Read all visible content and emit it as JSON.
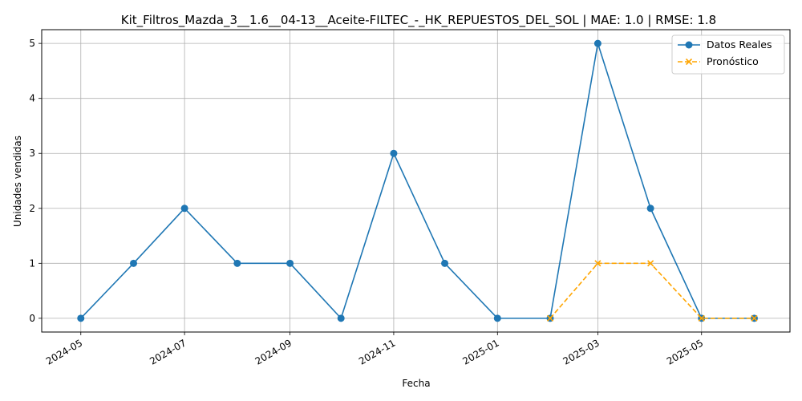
{
  "chart_data": {
    "type": "line",
    "title": "Kit_Filtros_Mazda_3__1.6__04-13__Aceite-FILTEC_-_HK_REPUESTOS_DEL_SOL | MAE: 1.0 | RMSE: 1.8",
    "xlabel": "Fecha",
    "ylabel": "Unidades vendidas",
    "x_type": "date",
    "x_ticks": [
      "2024-05",
      "2024-07",
      "2024-09",
      "2024-11",
      "2025-01",
      "2025-03",
      "2025-05"
    ],
    "y_ticks": [
      0,
      1,
      2,
      3,
      4,
      5
    ],
    "xlim": [
      "2024-04-08",
      "2025-06-22"
    ],
    "ylim": [
      -0.25,
      5.25
    ],
    "grid": true,
    "legend_position": "top-right",
    "series": [
      {
        "name": "Datos Reales",
        "color": "#1f77b4",
        "style": "solid",
        "marker": "circle",
        "points": [
          {
            "x": "2024-05-01",
            "y": 0
          },
          {
            "x": "2024-06-01",
            "y": 1
          },
          {
            "x": "2024-07-01",
            "y": 2
          },
          {
            "x": "2024-08-01",
            "y": 1
          },
          {
            "x": "2024-09-01",
            "y": 1
          },
          {
            "x": "2024-10-01",
            "y": 0
          },
          {
            "x": "2024-11-01",
            "y": 3
          },
          {
            "x": "2024-12-01",
            "y": 1
          },
          {
            "x": "2025-01-01",
            "y": 0
          },
          {
            "x": "2025-02-01",
            "y": 0
          },
          {
            "x": "2025-03-01",
            "y": 5
          },
          {
            "x": "2025-04-01",
            "y": 2
          },
          {
            "x": "2025-05-01",
            "y": 0
          },
          {
            "x": "2025-06-01",
            "y": 0
          }
        ]
      },
      {
        "name": "Pronóstico",
        "color": "#ffa500",
        "style": "dashed",
        "marker": "x",
        "points": [
          {
            "x": "2025-02-01",
            "y": 0
          },
          {
            "x": "2025-03-01",
            "y": 1
          },
          {
            "x": "2025-04-01",
            "y": 1
          },
          {
            "x": "2025-05-01",
            "y": 0
          },
          {
            "x": "2025-06-01",
            "y": 0
          }
        ]
      }
    ]
  }
}
